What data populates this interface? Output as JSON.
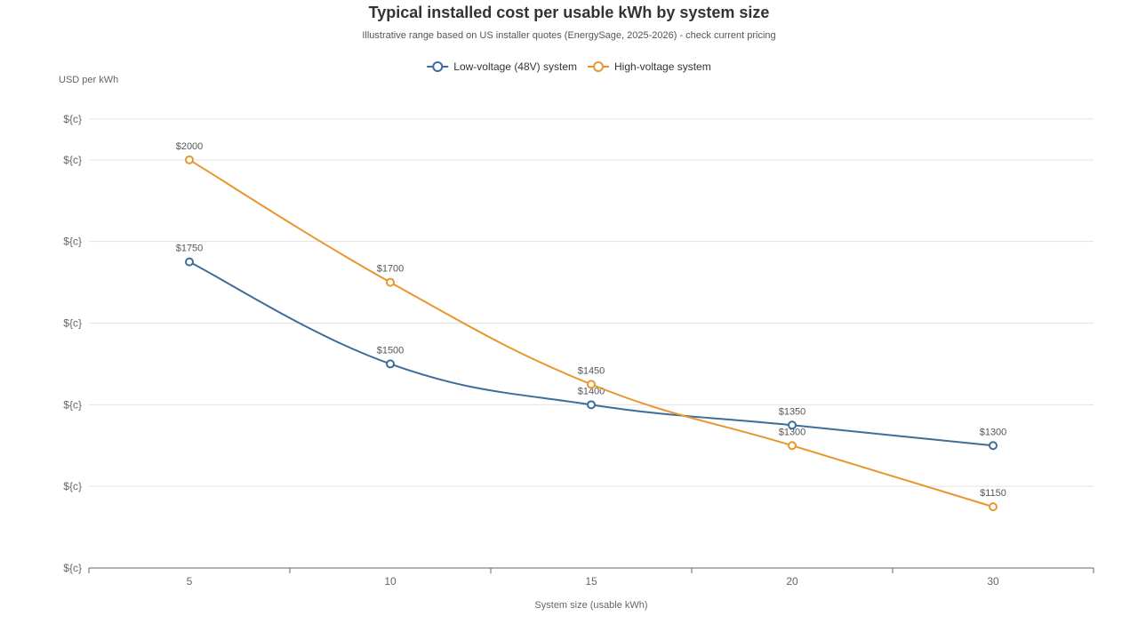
{
  "chart_data": {
    "type": "line",
    "title": "Typical installed cost per usable kWh by system size",
    "subtitle": "Illustrative range based on US installer quotes (EnergySage, 2025-2026) - check current pricing",
    "xlabel": "System size (usable kWh)",
    "ylabel": "USD per kWh",
    "categories": [
      "5",
      "10",
      "15",
      "20",
      "30"
    ],
    "ylim": [
      1000,
      2200
    ],
    "y_ticks": [
      1000,
      1200,
      1400,
      1600,
      1800,
      2000,
      2100
    ],
    "y_tick_label": "${c}",
    "grid": true,
    "legend_position": "top-center",
    "series": [
      {
        "name": "Low-voltage (48V) system",
        "color": "#3e6d99",
        "values": [
          1750,
          1500,
          1400,
          1350,
          1300
        ],
        "labels": [
          "$1750",
          "$1500",
          "$1400",
          "$1350",
          "$1300"
        ]
      },
      {
        "name": "High-voltage system",
        "color": "#e8962f",
        "values": [
          2000,
          1700,
          1450,
          1300,
          1150
        ],
        "labels": [
          "$2000",
          "$1700",
          "$1450",
          "$1300",
          "$1150"
        ]
      }
    ]
  }
}
